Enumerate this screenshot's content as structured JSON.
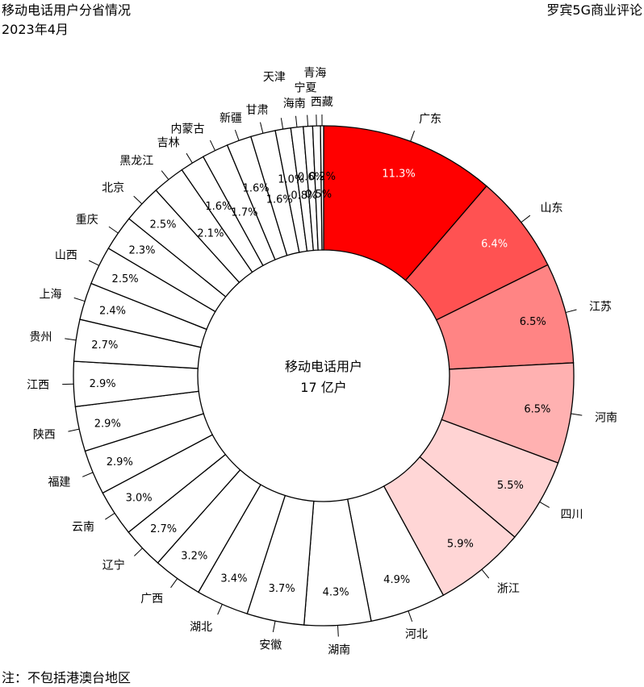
{
  "header": {
    "title": "移动电话用户分省情况",
    "subtitle": "2023年4月",
    "brand": "罗宾5G商业评论"
  },
  "footnote": "注：不包括港澳台地区",
  "chart_data": {
    "type": "pie",
    "variant": "donut",
    "center_label": [
      "移动电话用户",
      "17 亿户"
    ],
    "value_unit": "%",
    "slices": [
      {
        "label": "广东",
        "value": 11.3,
        "value_text": "11.3%",
        "color": "#ff0000"
      },
      {
        "label": "山东",
        "value": 6.4,
        "value_text": "6.4%",
        "color": "#ff5252"
      },
      {
        "label": "江苏",
        "value": 6.5,
        "value_text": "6.5%",
        "color": "#ff8484"
      },
      {
        "label": "河南",
        "value": 6.5,
        "value_text": "6.5%",
        "color": "#ffb1b1"
      },
      {
        "label": "四川",
        "value": 5.5,
        "value_text": "5.5%",
        "color": "#ffd3d3"
      },
      {
        "label": "浙江",
        "value": 5.9,
        "value_text": "5.9%",
        "color": "#ffd6d6"
      },
      {
        "label": "河北",
        "value": 4.9,
        "value_text": "4.9%",
        "color": "#ffffff"
      },
      {
        "label": "湖南",
        "value": 4.3,
        "value_text": "4.3%",
        "color": "#ffffff"
      },
      {
        "label": "安徽",
        "value": 3.7,
        "value_text": "3.7%",
        "color": "#ffffff"
      },
      {
        "label": "湖北",
        "value": 3.4,
        "value_text": "3.4%",
        "color": "#ffffff"
      },
      {
        "label": "广西",
        "value": 3.2,
        "value_text": "3.2%",
        "color": "#ffffff"
      },
      {
        "label": "辽宁",
        "value": 2.7,
        "value_text": "2.7%",
        "color": "#ffffff"
      },
      {
        "label": "云南",
        "value": 3.0,
        "value_text": "3.0%",
        "color": "#ffffff"
      },
      {
        "label": "福建",
        "value": 2.9,
        "value_text": "2.9%",
        "color": "#ffffff"
      },
      {
        "label": "陕西",
        "value": 2.9,
        "value_text": "2.9%",
        "color": "#ffffff"
      },
      {
        "label": "江西",
        "value": 2.9,
        "value_text": "2.9%",
        "color": "#ffffff"
      },
      {
        "label": "贵州",
        "value": 2.7,
        "value_text": "2.7%",
        "color": "#ffffff"
      },
      {
        "label": "上海",
        "value": 2.4,
        "value_text": "2.4%",
        "color": "#ffffff"
      },
      {
        "label": "山西",
        "value": 2.5,
        "value_text": "2.5%",
        "color": "#ffffff"
      },
      {
        "label": "重庆",
        "value": 2.3,
        "value_text": "2.3%",
        "color": "#ffffff"
      },
      {
        "label": "北京",
        "value": 2.5,
        "value_text": "2.5%",
        "color": "#ffffff"
      },
      {
        "label": "黑龙江",
        "value": 2.1,
        "value_text": "2.1%",
        "color": "#ffffff"
      },
      {
        "label": "吉林",
        "value": 1.6,
        "value_text": "1.6%",
        "color": "#ffffff"
      },
      {
        "label": "内蒙古",
        "value": 1.7,
        "value_text": "1.7%",
        "color": "#ffffff"
      },
      {
        "label": "新疆",
        "value": 1.6,
        "value_text": "1.6%",
        "color": "#ffffff"
      },
      {
        "label": "甘肃",
        "value": 1.6,
        "value_text": "1.6%",
        "color": "#ffffff"
      },
      {
        "label": "天津",
        "value": 1.0,
        "value_text": "1.0%",
        "color": "#ffffff"
      },
      {
        "label": "海南",
        "value": 0.8,
        "value_text": "0.8%",
        "color": "#ffffff"
      },
      {
        "label": "宁夏",
        "value": 0.6,
        "value_text": "0.6%",
        "color": "#ffffff"
      },
      {
        "label": "青海",
        "value": 0.5,
        "value_text": "0.5%",
        "color": "#ffffff"
      },
      {
        "label": "西藏",
        "value": 0.2,
        "value_text": "0.2%",
        "color": "#ffffff"
      }
    ]
  }
}
